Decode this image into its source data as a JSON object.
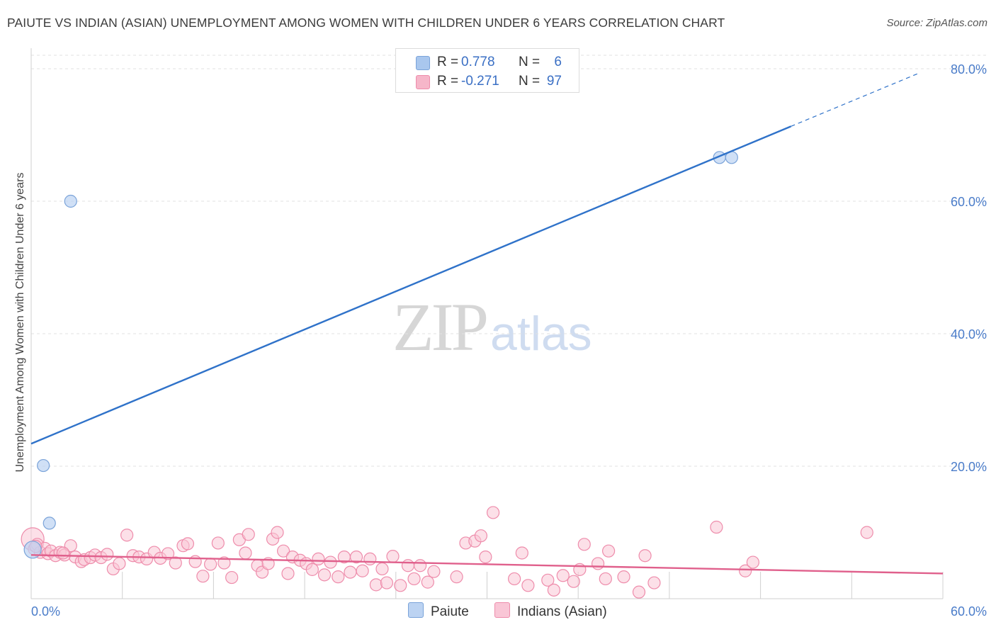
{
  "header": {
    "title": "PAIUTE VS INDIAN (ASIAN) UNEMPLOYMENT AMONG WOMEN WITH CHILDREN UNDER 6 YEARS CORRELATION CHART",
    "source": "Source: ZipAtlas.com"
  },
  "watermark": {
    "zip": "ZIP",
    "atlas": "atlas"
  },
  "legend": {
    "rows": [
      {
        "r_label": "R =",
        "r_value": "0.778",
        "n_label": "N =",
        "n_value": "6",
        "color": "#a9c7ee"
      },
      {
        "r_label": "R =",
        "r_value": "-0.271",
        "n_label": "N =",
        "n_value": "97",
        "color": "#f6b6c9"
      }
    ]
  },
  "colors": {
    "paiute_fill": "#bcd3f2",
    "paiute_stroke": "#7aa3d9",
    "paiute_line": "#2f72c9",
    "indian_fill": "#f9c6d6",
    "indian_stroke": "#ee8cab",
    "indian_line": "#e0608c",
    "tick_label": "#4a7cc9"
  },
  "chart_data": {
    "type": "scatter",
    "title": "PAIUTE VS INDIAN (ASIAN) UNEMPLOYMENT AMONG WOMEN WITH CHILDREN UNDER 6 YEARS CORRELATION CHART",
    "xlabel": "",
    "ylabel": "Unemployment Among Women with Children Under 6 years",
    "xlim": [
      0,
      60
    ],
    "ylim": [
      0,
      80
    ],
    "x_tick_labels": [
      "0.0%",
      "60.0%"
    ],
    "y_ticks": [
      20,
      40,
      60,
      80
    ],
    "y_tick_labels": [
      "20.0%",
      "40.0%",
      "60.0%",
      "80.0%"
    ],
    "grid": true,
    "legend_position": "bottom-center",
    "series": [
      {
        "name": "Paiute",
        "r": 0.778,
        "n": 6,
        "points": [
          [
            0.1,
            7.4
          ],
          [
            0.8,
            20.1
          ],
          [
            1.2,
            11.4
          ],
          [
            2.6,
            60.0
          ],
          [
            45.3,
            66.6
          ],
          [
            46.1,
            66.6
          ]
        ],
        "trend": {
          "x0": 0,
          "y0": 23.4,
          "x1": 50,
          "y1": 71.3,
          "dashed_to_x": 58.5,
          "dashed_to_y": 79.4
        }
      },
      {
        "name": "Indians (Asian)",
        "r": -0.271,
        "n": 97,
        "points": [
          [
            0.1,
            9.0
          ],
          [
            0.2,
            7.5
          ],
          [
            0.4,
            8.2
          ],
          [
            0.6,
            7.0
          ],
          [
            0.9,
            7.6
          ],
          [
            1.1,
            6.8
          ],
          [
            1.3,
            7.2
          ],
          [
            1.6,
            6.5
          ],
          [
            1.9,
            7.0
          ],
          [
            2.2,
            6.6
          ],
          [
            2.6,
            8.0
          ],
          [
            2.9,
            6.3
          ],
          [
            3.3,
            5.6
          ],
          [
            3.5,
            5.9
          ],
          [
            3.9,
            6.2
          ],
          [
            4.2,
            6.6
          ],
          [
            4.6,
            6.2
          ],
          [
            5.0,
            6.7
          ],
          [
            5.4,
            4.5
          ],
          [
            5.8,
            5.3
          ],
          [
            6.3,
            9.6
          ],
          [
            6.7,
            6.5
          ],
          [
            7.1,
            6.3
          ],
          [
            7.6,
            6.0
          ],
          [
            8.1,
            7.0
          ],
          [
            8.5,
            6.1
          ],
          [
            9.0,
            6.8
          ],
          [
            9.5,
            5.4
          ],
          [
            10.0,
            8.0
          ],
          [
            10.3,
            8.3
          ],
          [
            10.8,
            5.6
          ],
          [
            11.3,
            3.4
          ],
          [
            11.8,
            5.2
          ],
          [
            12.3,
            8.4
          ],
          [
            12.7,
            5.4
          ],
          [
            13.2,
            3.2
          ],
          [
            13.7,
            8.9
          ],
          [
            14.1,
            6.9
          ],
          [
            14.3,
            9.7
          ],
          [
            14.9,
            5.0
          ],
          [
            15.2,
            4.0
          ],
          [
            15.6,
            5.3
          ],
          [
            15.9,
            9.0
          ],
          [
            16.2,
            10.0
          ],
          [
            16.6,
            7.2
          ],
          [
            16.9,
            3.8
          ],
          [
            17.2,
            6.3
          ],
          [
            17.7,
            5.8
          ],
          [
            18.1,
            5.3
          ],
          [
            18.5,
            4.4
          ],
          [
            18.9,
            6.0
          ],
          [
            19.3,
            3.6
          ],
          [
            19.7,
            5.5
          ],
          [
            20.2,
            3.3
          ],
          [
            20.6,
            6.3
          ],
          [
            21.0,
            4.0
          ],
          [
            21.4,
            6.3
          ],
          [
            21.8,
            4.2
          ],
          [
            22.3,
            6.0
          ],
          [
            22.7,
            2.1
          ],
          [
            23.1,
            4.5
          ],
          [
            23.4,
            2.4
          ],
          [
            23.8,
            6.4
          ],
          [
            24.3,
            2.0
          ],
          [
            24.8,
            5.0
          ],
          [
            25.2,
            3.0
          ],
          [
            25.6,
            5.0
          ],
          [
            26.1,
            2.5
          ],
          [
            26.5,
            4.1
          ],
          [
            28.0,
            3.3
          ],
          [
            28.6,
            8.4
          ],
          [
            29.2,
            8.7
          ],
          [
            29.6,
            9.5
          ],
          [
            29.9,
            6.3
          ],
          [
            30.4,
            13.0
          ],
          [
            31.8,
            3.0
          ],
          [
            32.3,
            6.9
          ],
          [
            32.7,
            2.0
          ],
          [
            34.0,
            2.8
          ],
          [
            34.4,
            1.3
          ],
          [
            35.0,
            3.5
          ],
          [
            35.7,
            2.6
          ],
          [
            36.1,
            4.4
          ],
          [
            36.4,
            8.2
          ],
          [
            37.3,
            5.3
          ],
          [
            37.8,
            3.0
          ],
          [
            38.0,
            7.2
          ],
          [
            39.0,
            3.3
          ],
          [
            40.0,
            1.0
          ],
          [
            40.4,
            6.5
          ],
          [
            41.0,
            2.4
          ],
          [
            45.1,
            10.8
          ],
          [
            47.0,
            4.2
          ],
          [
            47.5,
            5.5
          ],
          [
            55.0,
            10.0
          ],
          [
            0.3,
            7.9
          ],
          [
            2.1,
            6.9
          ]
        ],
        "trend": {
          "x0": 0,
          "y0": 6.6,
          "x1": 60,
          "y1": 3.8
        }
      }
    ]
  }
}
